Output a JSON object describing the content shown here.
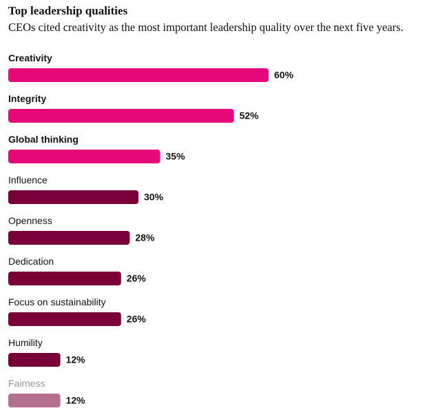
{
  "chart_data": {
    "type": "bar",
    "title": "Top leadership qualities",
    "subtitle": "CEOs cited creativity as the most important leadership quality over the next five years.",
    "categories": [
      "Creativity",
      "Integrity",
      "Global thinking",
      "Influence",
      "Openness",
      "Dedication",
      "Focus on sustainability",
      "Humility",
      "Fairness"
    ],
    "values": [
      60,
      52,
      35,
      30,
      28,
      26,
      26,
      12,
      12
    ],
    "value_labels": [
      "60%",
      "52%",
      "35%",
      "30%",
      "28%",
      "26%",
      "26%",
      "12%",
      "12%"
    ],
    "colors": [
      "#e6097a",
      "#e6097a",
      "#e6097a",
      "#790036",
      "#790036",
      "#790036",
      "#790036",
      "#790036",
      "#b6708f"
    ]
  }
}
